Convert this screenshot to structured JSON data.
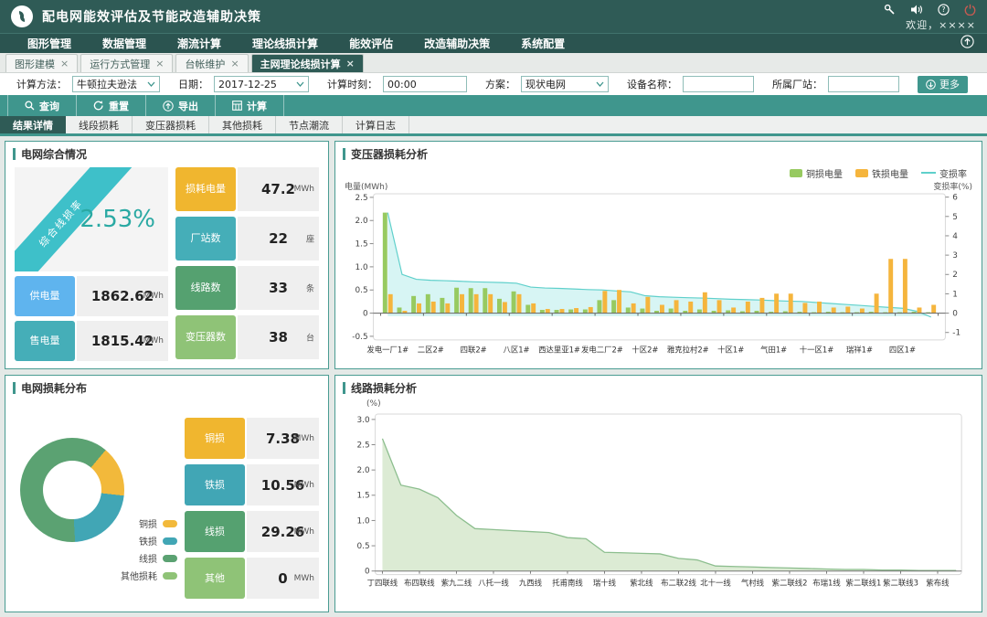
{
  "theme": {
    "header_bg": "#2f5b56",
    "accent_teal": "#3f968d",
    "ribbon_teal": "#3ec0c9",
    "power_icon_red": "#c75b52"
  },
  "titlebar": {
    "app_title": "配电网能效评估及节能改造辅助决策",
    "welcome": "欢迎，××××"
  },
  "menubar": {
    "items": [
      "图形管理",
      "数据管理",
      "潮流计算",
      "理论线损计算",
      "能效评估",
      "改造辅助决策",
      "系统配置"
    ]
  },
  "doc_tabs": {
    "close_glyph": "×",
    "items": [
      "图形建模",
      "运行方式管理",
      "台帐维护",
      "主网理论线损计算"
    ],
    "active": "主网理论线损计算"
  },
  "form": {
    "method_label": "计算方法：",
    "method_value": "牛顿拉夫逊法",
    "date_label": "日期：",
    "date_value": "2017-12-25",
    "time_label": "计算时刻：",
    "time_value": "00:00",
    "scheme_label": "方案：",
    "scheme_value": "现状电网",
    "device_label": "设备名称：",
    "device_value": "",
    "station_label": "所属厂站：",
    "station_value": "",
    "more_label": "更多"
  },
  "toolbar": {
    "query_label": "查询",
    "reset_label": "重置",
    "export_label": "导出",
    "calc_label": "计算"
  },
  "result_tabs": {
    "items": [
      "结果详情",
      "线段损耗",
      "变压器损耗",
      "其他损耗",
      "节点潮流",
      "计算日志"
    ],
    "active": "结果详情"
  },
  "panels": {
    "overview": {
      "title": "电网综合情况",
      "ribbon_label": "综合线损率",
      "ribbon_value": "2.53%",
      "left_cards": [
        {
          "label": "供电量",
          "value": "1862.62",
          "unit": "MWh",
          "color": "#5fb4ee"
        },
        {
          "label": "售电量",
          "value": "1815.42",
          "unit": "MWh",
          "color": "#45aeb8"
        }
      ],
      "right_cards": [
        {
          "label": "损耗电量",
          "value": "47.2",
          "unit": "MWh",
          "color": "#f0b62f"
        },
        {
          "label": "厂站数",
          "value": "22",
          "unit": "座",
          "color": "#45aeb8"
        },
        {
          "label": "线路数",
          "value": "33",
          "unit": "条",
          "color": "#55a170"
        },
        {
          "label": "变压器数",
          "value": "38",
          "unit": "台",
          "color": "#8fc377"
        }
      ]
    },
    "transformer": {
      "title": "变压器损耗分析",
      "legend": [
        {
          "label": "铜损电量",
          "color": "#97ca60"
        },
        {
          "label": "铁损电量",
          "color": "#f5b53d"
        },
        {
          "label": "变损率",
          "color": "#5fd0cb"
        }
      ],
      "ylabel_left": "电量(MWh)",
      "ylabel_right": "变损率(%)"
    },
    "distribution": {
      "title": "电网损耗分布",
      "legend": [
        {
          "label": "铜损",
          "color": "#f2b93b"
        },
        {
          "label": "铁损",
          "color": "#41a6b5"
        },
        {
          "label": "线损",
          "color": "#5ba272"
        },
        {
          "label": "其他损耗",
          "color": "#8fc377"
        }
      ],
      "cards": [
        {
          "label": "铜损",
          "value": "7.38",
          "unit": "MWh",
          "color": "#f0b62f"
        },
        {
          "label": "铁损",
          "value": "10.56",
          "unit": "MWh",
          "color": "#41a6b5"
        },
        {
          "label": "线损",
          "value": "29.26",
          "unit": "MWh",
          "color": "#55a170"
        },
        {
          "label": "其他",
          "value": "0",
          "unit": "MWh",
          "color": "#8fc377"
        }
      ]
    },
    "lineloss": {
      "title": "线路损耗分析",
      "ylabel": "(%)"
    }
  },
  "chart_data": [
    {
      "type": "bar",
      "title": "变压器损耗分析",
      "ylabel_left": "电量(MWh)",
      "ylabel_right": "变损率(%)",
      "ylim_left": [
        -0.5,
        2.5
      ],
      "ylim_right": [
        -1,
        6
      ],
      "yticks_left": [
        "2.5",
        "2.0",
        "1.5",
        "1.0",
        "0.5",
        "0",
        "-0.5"
      ],
      "yticks_right": [
        "6",
        "5",
        "4",
        "3",
        "2",
        "1",
        "0",
        "-1"
      ],
      "category_count": 39,
      "label_every": 3,
      "categories_labeled": [
        "发电一厂1#",
        "二区2#",
        "四联2#",
        "八区1#",
        "西达里亚1#",
        "发电二厂2#",
        "十区2#",
        "雅克拉村2#",
        "十区1#",
        "气田1#",
        "十一区1#",
        "瑞祥1#",
        "四区1#"
      ],
      "series": [
        {
          "name": "铜损电量",
          "type": "bar",
          "axis": "left",
          "color": "#97ca60",
          "values": [
            2.17,
            0.12,
            0.37,
            0.41,
            0.33,
            0.55,
            0.54,
            0.54,
            0.31,
            0.47,
            0.18,
            0.07,
            0.07,
            0.08,
            0.08,
            0.28,
            0.28,
            0.12,
            0.1,
            0.05,
            0.1,
            0.05,
            0.08,
            0.05,
            0.06,
            0.04,
            0.05,
            0.03,
            0.04,
            0.03,
            0.02,
            0.03,
            0.02,
            0.02,
            0.03,
            0.02,
            0.02,
            0.03,
            0.02
          ]
        },
        {
          "name": "铁损电量",
          "type": "bar",
          "axis": "left",
          "color": "#f5b53d",
          "values": [
            0.41,
            0.05,
            0.21,
            0.25,
            0.21,
            0.41,
            0.41,
            0.41,
            0.24,
            0.41,
            0.21,
            0.09,
            0.09,
            0.11,
            0.13,
            0.48,
            0.5,
            0.21,
            0.35,
            0.18,
            0.28,
            0.25,
            0.45,
            0.28,
            0.12,
            0.25,
            0.33,
            0.42,
            0.42,
            0.22,
            0.25,
            0.12,
            0.14,
            0.1,
            0.42,
            1.17,
            1.17,
            0.12,
            0.18
          ]
        },
        {
          "name": "变损率",
          "type": "line",
          "axis": "right",
          "color": "#5fd0cb",
          "area_color": "#cdf3f1",
          "values": [
            5.2,
            2.0,
            1.75,
            1.7,
            1.68,
            1.65,
            1.62,
            1.6,
            1.58,
            1.55,
            1.35,
            1.3,
            1.28,
            1.25,
            1.22,
            1.2,
            1.15,
            1.1,
            0.9,
            0.85,
            0.82,
            0.8,
            0.78,
            0.75,
            0.72,
            0.7,
            0.68,
            0.65,
            0.62,
            0.6,
            0.55,
            0.5,
            0.45,
            0.4,
            0.35,
            0.3,
            0.25,
            0.1,
            -0.2
          ]
        }
      ]
    },
    {
      "type": "area",
      "title": "线路损耗分析",
      "ylabel": "(%)",
      "ylim": [
        0,
        3
      ],
      "yticks": [
        "3.0",
        "2.5",
        "2.0",
        "1.5",
        "1.0",
        "0.5",
        "0"
      ],
      "point_count": 32,
      "label_every": 2,
      "categories_labeled": [
        "丁四联线",
        "布四联线",
        "紫九二线",
        "八托一线",
        "九西线",
        "托甫南线",
        "瑞十线",
        "紫北线",
        "布二联2线",
        "北十一线",
        "气村线",
        "紫二联线2",
        "布瑞1线",
        "紫二联线1",
        "紫二联线3",
        "紫布线"
      ],
      "line_color": "#8cbe8e",
      "area_color": "#dcebd4",
      "values": [
        2.62,
        1.7,
        1.62,
        1.45,
        1.1,
        0.84,
        0.82,
        0.8,
        0.78,
        0.76,
        0.66,
        0.64,
        0.37,
        0.36,
        0.35,
        0.34,
        0.25,
        0.22,
        0.1,
        0.09,
        0.08,
        0.07,
        0.06,
        0.05,
        0.04,
        0.03,
        0.03,
        0.02,
        0.02,
        0.01,
        0.01,
        0.01
      ]
    },
    {
      "type": "pie",
      "title": "电网损耗分布",
      "unit": "MWh",
      "start_angle_deg": 40,
      "slices": [
        {
          "label": "铜损",
          "value": 7.38,
          "color": "#f2b93b"
        },
        {
          "label": "铁损",
          "value": 10.56,
          "color": "#41a6b5"
        },
        {
          "label": "线损",
          "value": 29.26,
          "color": "#5ba272"
        },
        {
          "label": "其他损耗",
          "value": 0,
          "color": "#8fc377"
        }
      ]
    }
  ]
}
